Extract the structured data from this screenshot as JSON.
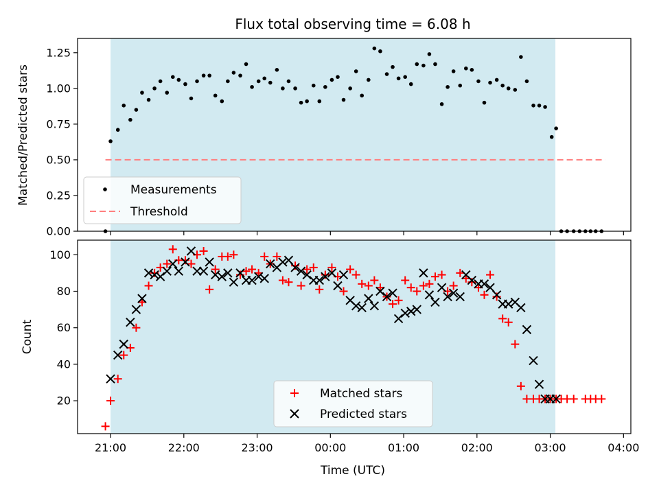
{
  "chart_data": [
    {
      "type": "scatter",
      "title": "Flux total observing time = 6.08 h",
      "xlabel": "",
      "ylabel": "Matched/Predicted stars",
      "ylim": [
        0,
        1.35
      ],
      "yticks": [
        "0.00",
        "0.25",
        "0.50",
        "0.75",
        "1.00",
        "1.25"
      ],
      "ytick_values": [
        0,
        0.25,
        0.5,
        0.75,
        1.0,
        1.25
      ],
      "xlim_hours": [
        20.55,
        28.1
      ],
      "shaded_span_hours": [
        21.0,
        27.07
      ],
      "shade_color": "#add8e6",
      "legend_position": "lower-left",
      "series": [
        {
          "name": "Measurements",
          "marker": "dot",
          "color": "#000000",
          "x_hours": [
            20.93,
            21.0,
            21.1,
            21.18,
            21.27,
            21.35,
            21.43,
            21.52,
            21.6,
            21.68,
            21.77,
            21.85,
            21.93,
            22.02,
            22.1,
            22.18,
            22.27,
            22.35,
            22.43,
            22.52,
            22.6,
            22.68,
            22.77,
            22.85,
            22.93,
            23.02,
            23.1,
            23.18,
            23.27,
            23.35,
            23.43,
            23.52,
            23.6,
            23.68,
            23.77,
            23.85,
            23.93,
            24.02,
            24.1,
            24.18,
            24.27,
            24.35,
            24.43,
            24.52,
            24.6,
            24.68,
            24.77,
            24.85,
            24.93,
            25.02,
            25.1,
            25.18,
            25.27,
            25.35,
            25.43,
            25.52,
            25.6,
            25.68,
            25.77,
            25.85,
            25.93,
            26.02,
            26.1,
            26.18,
            26.27,
            26.35,
            26.43,
            26.52,
            26.6,
            26.68,
            26.77,
            26.85,
            26.93,
            27.02,
            27.08,
            27.15,
            27.23,
            27.32,
            27.4,
            27.48,
            27.55,
            27.62,
            27.7
          ],
          "values": [
            0.0,
            0.63,
            0.71,
            0.88,
            0.78,
            0.85,
            0.97,
            0.92,
            1.0,
            1.05,
            0.97,
            1.08,
            1.06,
            1.03,
            0.93,
            1.05,
            1.09,
            1.09,
            0.95,
            0.91,
            1.05,
            1.11,
            1.09,
            1.17,
            1.01,
            1.05,
            1.07,
            1.04,
            1.13,
            1.0,
            1.05,
            1.0,
            0.9,
            0.91,
            1.02,
            0.91,
            1.01,
            1.06,
            1.08,
            0.92,
            1.0,
            1.12,
            0.95,
            1.06,
            1.28,
            1.26,
            1.1,
            1.15,
            1.07,
            1.08,
            1.03,
            1.17,
            1.16,
            1.24,
            1.17,
            0.89,
            1.01,
            1.12,
            1.02,
            1.14,
            1.13,
            1.05,
            0.9,
            1.04,
            1.06,
            1.02,
            1.0,
            0.99,
            1.22,
            1.05,
            0.88,
            0.88,
            0.87,
            0.66,
            0.72,
            0.0,
            0.0,
            0.0,
            0.0,
            0.0,
            0.0,
            0.0,
            0.0
          ]
        },
        {
          "name": "Threshold",
          "marker": "dashed-line",
          "color": "#ff7f7f",
          "x_hours": [
            20.93,
            27.75
          ],
          "values": [
            0.5,
            0.5
          ]
        }
      ]
    },
    {
      "type": "scatter",
      "title": "",
      "xlabel": "Time (UTC)",
      "ylabel": "Count",
      "ylim": [
        2,
        108
      ],
      "yticks": [
        "20",
        "40",
        "60",
        "80",
        "100"
      ],
      "ytick_values": [
        20,
        40,
        60,
        80,
        100
      ],
      "xticks": [
        "21:00",
        "22:00",
        "23:00",
        "00:00",
        "01:00",
        "02:00",
        "03:00",
        "04:00"
      ],
      "xtick_hours": [
        21,
        22,
        23,
        24,
        25,
        26,
        27,
        28
      ],
      "xlim_hours": [
        20.55,
        28.1
      ],
      "shaded_span_hours": [
        21.0,
        27.07
      ],
      "shade_color": "#add8e6",
      "legend_position": "lower-center",
      "series": [
        {
          "name": "Matched stars",
          "marker": "plus",
          "color": "#ff0000",
          "x_hours": [
            20.93,
            21.0,
            21.1,
            21.18,
            21.27,
            21.35,
            21.43,
            21.52,
            21.6,
            21.68,
            21.77,
            21.85,
            21.93,
            22.02,
            22.1,
            22.18,
            22.27,
            22.35,
            22.43,
            22.52,
            22.6,
            22.68,
            22.77,
            22.85,
            22.93,
            23.02,
            23.1,
            23.18,
            23.27,
            23.35,
            23.43,
            23.52,
            23.6,
            23.68,
            23.77,
            23.85,
            23.93,
            24.02,
            24.1,
            24.18,
            24.27,
            24.35,
            24.43,
            24.52,
            24.6,
            24.68,
            24.77,
            24.85,
            24.93,
            25.02,
            25.1,
            25.18,
            25.27,
            25.35,
            25.43,
            25.52,
            25.6,
            25.68,
            25.77,
            25.85,
            25.93,
            26.02,
            26.1,
            26.18,
            26.27,
            26.35,
            26.43,
            26.52,
            26.6,
            26.68,
            26.77,
            26.85,
            26.93,
            27.0,
            27.08,
            27.15,
            27.23,
            27.32,
            27.48,
            27.55,
            27.62,
            27.7
          ],
          "values": [
            6,
            20,
            32,
            45,
            49,
            60,
            74,
            83,
            90,
            93,
            95,
            103,
            97,
            97,
            95,
            100,
            102,
            81,
            92,
            99,
            99,
            100,
            89,
            91,
            92,
            90,
            99,
            95,
            99,
            86,
            85,
            94,
            83,
            92,
            93,
            81,
            89,
            93,
            88,
            80,
            92,
            89,
            84,
            83,
            86,
            82,
            77,
            73,
            75,
            86,
            82,
            80,
            83,
            84,
            88,
            89,
            80,
            83,
            90,
            87,
            85,
            82,
            78,
            89,
            77,
            65,
            63,
            51,
            28,
            21,
            21,
            21,
            21,
            21,
            21,
            21,
            21,
            21,
            21,
            21,
            21,
            21
          ]
        },
        {
          "name": "Predicted stars",
          "marker": "x",
          "color": "#000000",
          "x_hours": [
            21.0,
            21.1,
            21.18,
            21.27,
            21.35,
            21.43,
            21.52,
            21.6,
            21.68,
            21.77,
            21.85,
            21.93,
            22.02,
            22.1,
            22.18,
            22.27,
            22.35,
            22.43,
            22.52,
            22.6,
            22.68,
            22.77,
            22.85,
            22.93,
            23.02,
            23.1,
            23.18,
            23.27,
            23.35,
            23.43,
            23.52,
            23.6,
            23.68,
            23.77,
            23.85,
            23.93,
            24.02,
            24.1,
            24.18,
            24.27,
            24.35,
            24.43,
            24.52,
            24.6,
            24.68,
            24.77,
            24.85,
            24.93,
            25.02,
            25.1,
            25.18,
            25.27,
            25.35,
            25.43,
            25.52,
            25.6,
            25.68,
            25.77,
            25.85,
            25.93,
            26.02,
            26.1,
            26.18,
            26.27,
            26.35,
            26.43,
            26.52,
            26.6,
            26.68,
            26.77,
            26.85,
            26.93,
            27.0,
            27.08
          ],
          "values": [
            32,
            45,
            51,
            63,
            70,
            76,
            90,
            89,
            88,
            91,
            95,
            91,
            96,
            102,
            91,
            91,
            96,
            89,
            88,
            90,
            85,
            90,
            86,
            86,
            88,
            87,
            95,
            93,
            96,
            97,
            93,
            91,
            89,
            86,
            86,
            88,
            90,
            83,
            89,
            75,
            72,
            71,
            76,
            72,
            80,
            77,
            79,
            65,
            68,
            69,
            70,
            90,
            78,
            74,
            82,
            77,
            79,
            77,
            89,
            86,
            84,
            84,
            82,
            78,
            73,
            73,
            74,
            71,
            59,
            42,
            29,
            21,
            21,
            21
          ]
        }
      ]
    }
  ]
}
